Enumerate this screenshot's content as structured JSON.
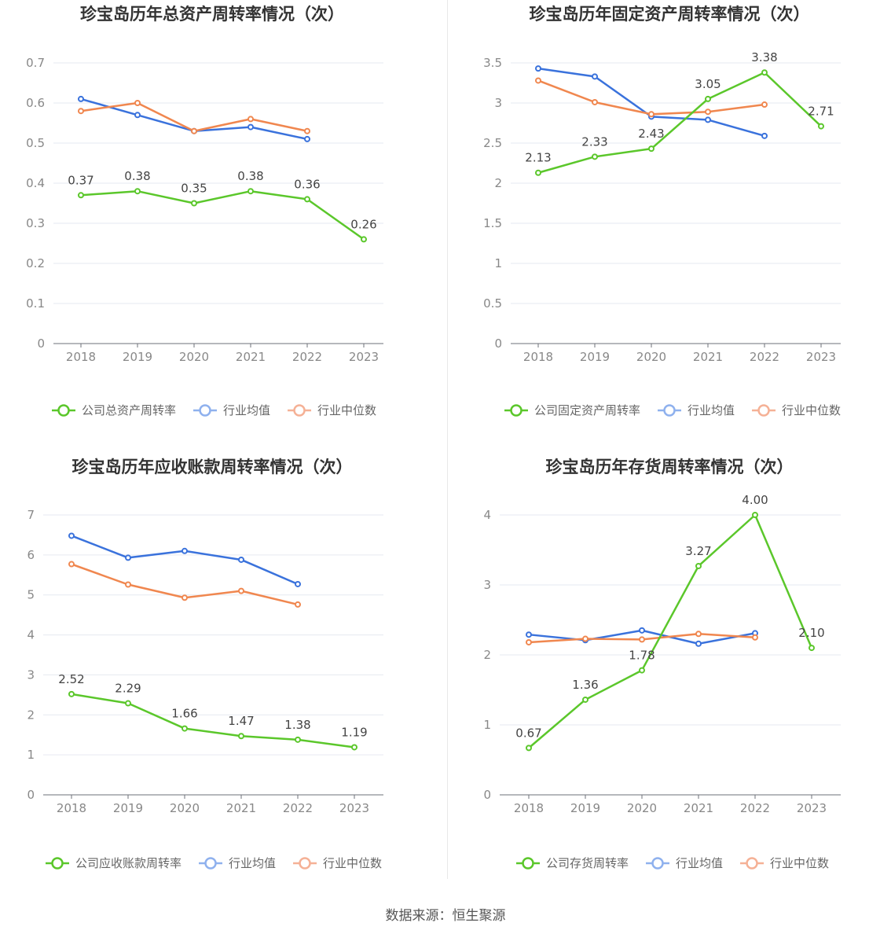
{
  "source": "数据来源：恒生聚源",
  "colors": {
    "company": "#5bc72b",
    "avg": "#3a72dc",
    "median": "#f0874f",
    "avg_legend": "#8fb1ee",
    "median_legend": "#f5b196"
  },
  "chart_data": [
    {
      "type": "line",
      "title": "珍宝岛历年总资产周转率情况（次）",
      "categories": [
        "2018",
        "2019",
        "2020",
        "2021",
        "2022",
        "2023"
      ],
      "ylim": [
        0,
        0.7
      ],
      "yticks": [
        0,
        0.1,
        0.2,
        0.3,
        0.4,
        0.5,
        0.6,
        0.7
      ],
      "ytick_labels": [
        "0",
        "0.1",
        "0.2",
        "0.3",
        "0.4",
        "0.5",
        "0.6",
        "0.7"
      ],
      "series": [
        {
          "name": "公司总资产周转率",
          "color": "#5bc72b",
          "legend_color": "#5bc72b",
          "values": [
            0.37,
            0.38,
            0.35,
            0.38,
            0.36,
            0.26
          ],
          "labels": [
            "0.37",
            "0.38",
            "0.35",
            "0.38",
            "0.36",
            "0.26"
          ]
        },
        {
          "name": "行业均值",
          "color": "#3a72dc",
          "legend_color": "#8fb1ee",
          "values": [
            0.61,
            0.57,
            0.53,
            0.54,
            0.51,
            null
          ]
        },
        {
          "name": "行业中位数",
          "color": "#f0874f",
          "legend_color": "#f5b196",
          "values": [
            0.58,
            0.6,
            0.53,
            0.56,
            0.53,
            null
          ]
        }
      ]
    },
    {
      "type": "line",
      "title": "珍宝岛历年固定资产周转率情况（次）",
      "categories": [
        "2018",
        "2019",
        "2020",
        "2021",
        "2022",
        "2023"
      ],
      "ylim": [
        0,
        3.5
      ],
      "yticks": [
        0,
        0.5,
        1,
        1.5,
        2,
        2.5,
        3,
        3.5
      ],
      "ytick_labels": [
        "0",
        "0.5",
        "1",
        "1.5",
        "2",
        "2.5",
        "3",
        "3.5"
      ],
      "series": [
        {
          "name": "公司固定资产周转率",
          "color": "#5bc72b",
          "legend_color": "#5bc72b",
          "values": [
            2.13,
            2.33,
            2.43,
            3.05,
            3.38,
            2.71
          ],
          "labels": [
            "2.13",
            "2.33",
            "2.43",
            "3.05",
            "3.38",
            "2.71"
          ]
        },
        {
          "name": "行业均值",
          "color": "#3a72dc",
          "legend_color": "#8fb1ee",
          "values": [
            3.43,
            3.33,
            2.83,
            2.79,
            2.59,
            null
          ]
        },
        {
          "name": "行业中位数",
          "color": "#f0874f",
          "legend_color": "#f5b196",
          "values": [
            3.28,
            3.01,
            2.86,
            2.89,
            2.98,
            null
          ]
        }
      ]
    },
    {
      "type": "line",
      "title": "珍宝岛历年应收账款周转率情况（次）",
      "categories": [
        "2018",
        "2019",
        "2020",
        "2021",
        "2022",
        "2023"
      ],
      "ylim": [
        0,
        7
      ],
      "yticks": [
        0,
        1,
        2,
        3,
        4,
        5,
        6,
        7
      ],
      "ytick_labels": [
        "0",
        "1",
        "2",
        "3",
        "4",
        "5",
        "6",
        "7"
      ],
      "series": [
        {
          "name": "公司应收账款周转率",
          "color": "#5bc72b",
          "legend_color": "#5bc72b",
          "values": [
            2.52,
            2.29,
            1.66,
            1.47,
            1.38,
            1.19
          ],
          "labels": [
            "2.52",
            "2.29",
            "1.66",
            "1.47",
            "1.38",
            "1.19"
          ]
        },
        {
          "name": "行业均值",
          "color": "#3a72dc",
          "legend_color": "#8fb1ee",
          "values": [
            6.48,
            5.93,
            6.1,
            5.88,
            5.27,
            null
          ]
        },
        {
          "name": "行业中位数",
          "color": "#f0874f",
          "legend_color": "#f5b196",
          "values": [
            5.77,
            5.26,
            4.93,
            5.1,
            4.76,
            null
          ]
        }
      ]
    },
    {
      "type": "line",
      "title": "珍宝岛历年存货周转率情况（次）",
      "categories": [
        "2018",
        "2019",
        "2020",
        "2021",
        "2022",
        "2023"
      ],
      "ylim": [
        0,
        4
      ],
      "yticks": [
        0,
        1,
        2,
        3,
        4
      ],
      "ytick_labels": [
        "0",
        "1",
        "2",
        "3",
        "4"
      ],
      "series": [
        {
          "name": "公司存货周转率",
          "color": "#5bc72b",
          "legend_color": "#5bc72b",
          "values": [
            0.67,
            1.36,
            1.78,
            3.27,
            4.0,
            2.1
          ],
          "labels": [
            "0.67",
            "1.36",
            "1.78",
            "3.27",
            "4.00",
            "2.10"
          ]
        },
        {
          "name": "行业均值",
          "color": "#3a72dc",
          "legend_color": "#8fb1ee",
          "values": [
            2.29,
            2.21,
            2.35,
            2.16,
            2.31,
            null
          ]
        },
        {
          "name": "行业中位数",
          "color": "#f0874f",
          "legend_color": "#f5b196",
          "values": [
            2.18,
            2.23,
            2.22,
            2.3,
            2.25,
            null
          ]
        }
      ]
    }
  ]
}
